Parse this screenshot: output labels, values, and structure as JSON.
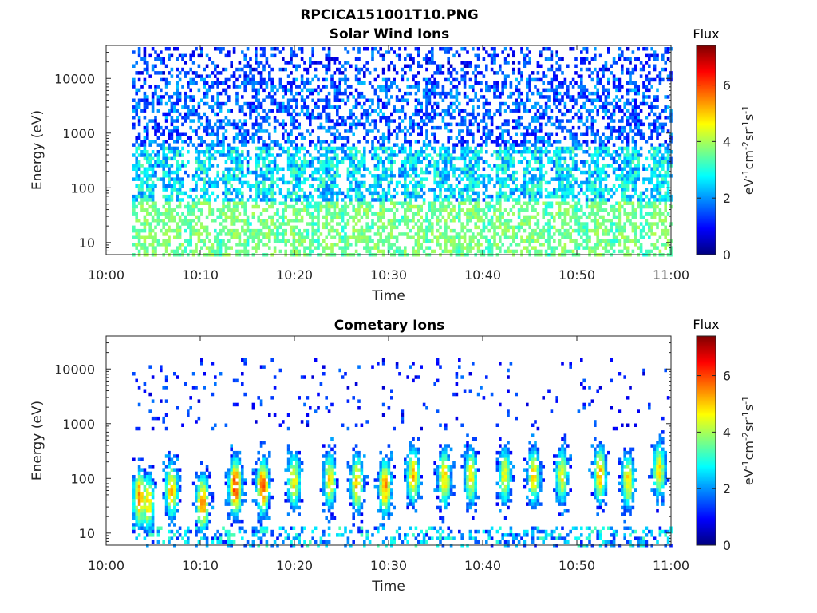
{
  "figure": {
    "title": "RPCICA151001T10.PNG"
  },
  "colorbar": {
    "title": "Flux",
    "unit_parts": [
      "eV",
      "-1",
      "cm",
      "-2",
      "sr",
      "-1",
      "s",
      "-1"
    ],
    "ticks": [
      "0",
      "2",
      "4",
      "6"
    ],
    "range": [
      0,
      7.4
    ],
    "colormap": "jet",
    "colors": [
      "#00007f",
      "#0000ff",
      "#007fff",
      "#00ffff",
      "#7fff7f",
      "#ffff00",
      "#ff7f00",
      "#ff0000",
      "#7f0000"
    ]
  },
  "chart_data": [
    {
      "type": "heatmap",
      "title": "Solar Wind Ions",
      "xlabel": "Time",
      "ylabel": "Energy (eV)",
      "x_ticks": [
        "10:00",
        "10:10",
        "10:20",
        "10:30",
        "10:40",
        "10:50",
        "11:00"
      ],
      "x_range_min": [
        0,
        60
      ],
      "x_data_start_min": 2.8,
      "y_ticks": [
        "10",
        "100",
        "1000",
        "10000"
      ],
      "y_scale": "log",
      "y_range_eV": [
        6,
        40000
      ],
      "color_scale": "Flux",
      "bands": [
        {
          "energy_eV": [
            6,
            60
          ],
          "flux": 3.6,
          "desc": "green/light-green patches"
        },
        {
          "energy_eV": [
            30,
            600
          ],
          "flux": 2.5,
          "desc": "cyan/blue vertical bursts"
        },
        {
          "energy_eV": [
            600,
            40000
          ],
          "flux": 1.7,
          "desc": "sparse blue/dark-blue speckle"
        }
      ],
      "burst_times_min": [
        4.0,
        6.8,
        10.2,
        13.5,
        16.6,
        20.0,
        23.6,
        26.5,
        29.4,
        32.6,
        35.6,
        38.6,
        42.2,
        45.2,
        48.5,
        52.2,
        55.4,
        58.8
      ]
    },
    {
      "type": "heatmap",
      "title": "Cometary Ions",
      "xlabel": "Time",
      "ylabel": "Energy (eV)",
      "x_ticks": [
        "10:00",
        "10:10",
        "10:20",
        "10:30",
        "10:40",
        "10:50",
        "11:00"
      ],
      "x_range_min": [
        0,
        60
      ],
      "x_data_start_min": 2.8,
      "y_ticks": [
        "10",
        "100",
        "1000",
        "10000"
      ],
      "y_scale": "log",
      "y_range_eV": [
        6,
        40000
      ],
      "color_scale": "Flux",
      "bursts": [
        {
          "t_min": 3.4,
          "center_eV": 45,
          "peak_flux": 5.6
        },
        {
          "t_min": 4.3,
          "center_eV": 35,
          "peak_flux": 5.0
        },
        {
          "t_min": 6.8,
          "center_eV": 60,
          "peak_flux": 5.2
        },
        {
          "t_min": 10.1,
          "center_eV": 35,
          "peak_flux": 5.5
        },
        {
          "t_min": 13.6,
          "center_eV": 70,
          "peak_flux": 6.2
        },
        {
          "t_min": 16.5,
          "center_eV": 70,
          "peak_flux": 5.8
        },
        {
          "t_min": 19.8,
          "center_eV": 90,
          "peak_flux": 4.8
        },
        {
          "t_min": 23.6,
          "center_eV": 90,
          "peak_flux": 4.8
        },
        {
          "t_min": 26.5,
          "center_eV": 80,
          "peak_flux": 5.2
        },
        {
          "t_min": 29.5,
          "center_eV": 70,
          "peak_flux": 5.4
        },
        {
          "t_min": 32.5,
          "center_eV": 110,
          "peak_flux": 5.2
        },
        {
          "t_min": 35.8,
          "center_eV": 100,
          "peak_flux": 5.0
        },
        {
          "t_min": 38.6,
          "center_eV": 110,
          "peak_flux": 4.8
        },
        {
          "t_min": 42.2,
          "center_eV": 110,
          "peak_flux": 4.6
        },
        {
          "t_min": 45.3,
          "center_eV": 110,
          "peak_flux": 5.0
        },
        {
          "t_min": 48.3,
          "center_eV": 110,
          "peak_flux": 4.6
        },
        {
          "t_min": 52.3,
          "center_eV": 120,
          "peak_flux": 5.2
        },
        {
          "t_min": 55.3,
          "center_eV": 90,
          "peak_flux": 4.8
        },
        {
          "t_min": 58.6,
          "center_eV": 140,
          "peak_flux": 4.8
        }
      ],
      "sparse_high_energy_eV": [
        800,
        15000
      ],
      "low_energy_blue_strip_eV": [
        6,
        14
      ]
    }
  ]
}
